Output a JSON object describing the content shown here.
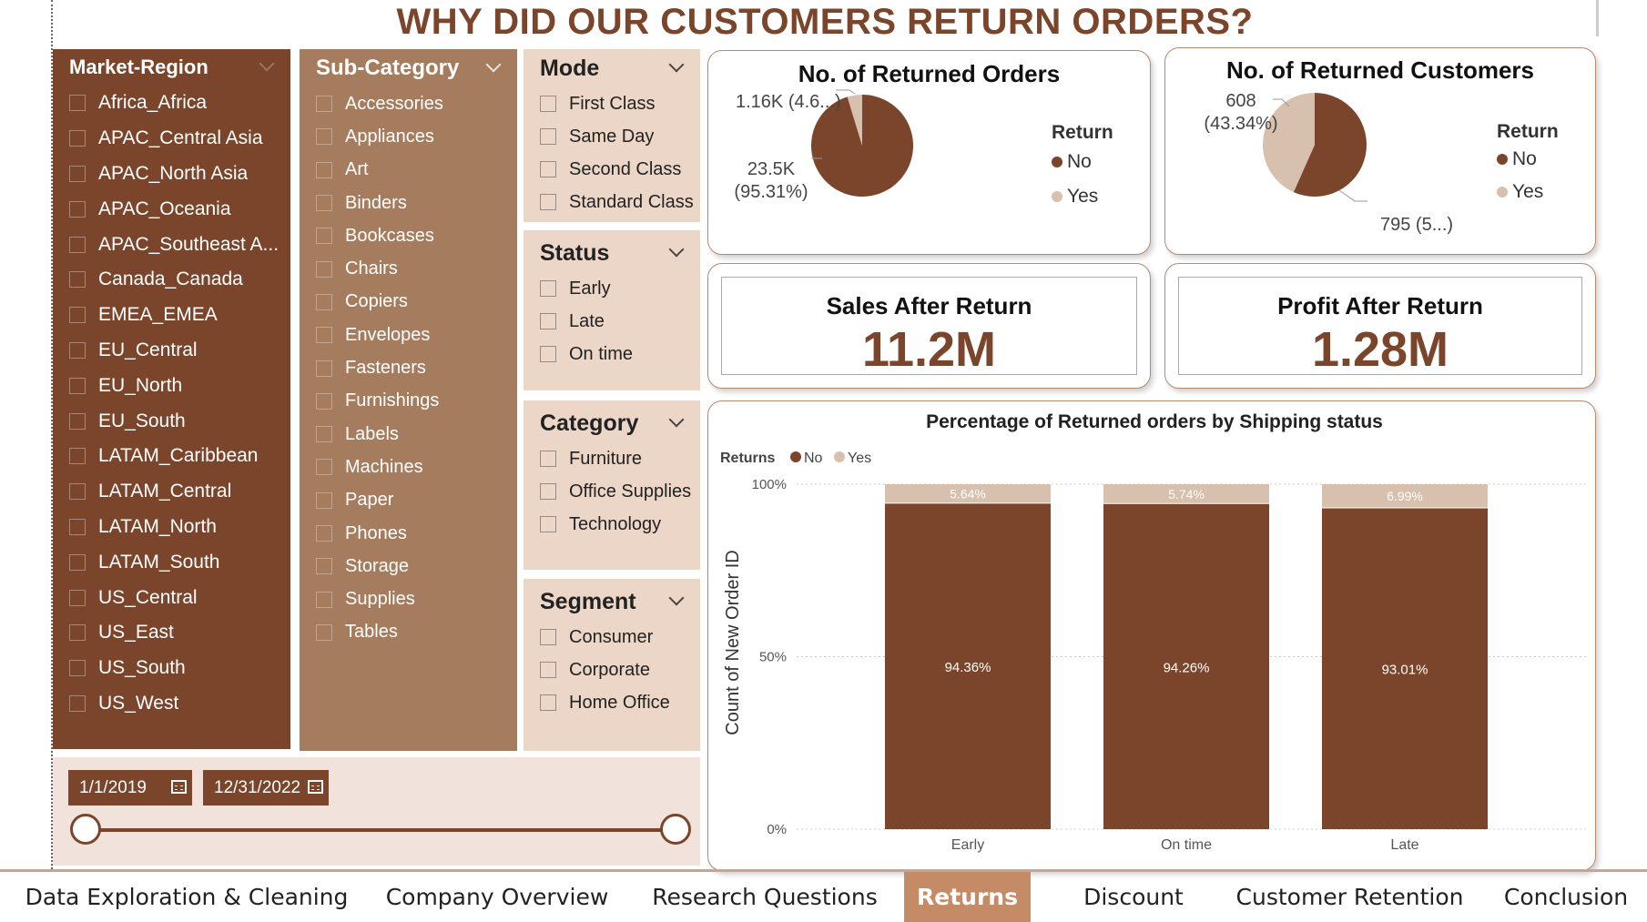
{
  "title": "WHY DID OUR CUSTOMERS RETURN ORDERS?",
  "slicers": {
    "region": {
      "title": "Market-Region",
      "items": [
        "Africa_Africa",
        "APAC_Central Asia",
        "APAC_North Asia",
        "APAC_Oceania",
        "APAC_Southeast A...",
        "Canada_Canada",
        "EMEA_EMEA",
        "EU_Central",
        "EU_North",
        "EU_South",
        "LATAM_Caribbean",
        "LATAM_Central",
        "LATAM_North",
        "LATAM_South",
        "US_Central",
        "US_East",
        "US_South",
        "US_West"
      ]
    },
    "sub_category": {
      "title": "Sub-Category",
      "items": [
        "Accessories",
        "Appliances",
        "Art",
        "Binders",
        "Bookcases",
        "Chairs",
        "Copiers",
        "Envelopes",
        "Fasteners",
        "Furnishings",
        "Labels",
        "Machines",
        "Paper",
        "Phones",
        "Storage",
        "Supplies",
        "Tables"
      ]
    },
    "mode": {
      "title": "Mode",
      "items": [
        "First Class",
        "Same Day",
        "Second Class",
        "Standard Class"
      ]
    },
    "status": {
      "title": "Status",
      "items": [
        "Early",
        "Late",
        "On time"
      ]
    },
    "category": {
      "title": "Category",
      "items": [
        "Furniture",
        "Office Supplies",
        "Technology"
      ]
    },
    "segment": {
      "title": "Segment",
      "items": [
        "Consumer",
        "Corporate",
        "Home Office"
      ]
    }
  },
  "date_range": {
    "start": "1/1/2019",
    "end": "12/31/2022",
    "slider_start_fraction": 0.0,
    "slider_end_fraction": 1.0
  },
  "colors": {
    "brown": "#7a452a",
    "beige": "#d7c0ae",
    "tan": "#a67c5e",
    "light": "#ecd6c8",
    "active_tab": "#c58b67"
  },
  "pie_orders": {
    "title": "No. of Returned Orders",
    "legend_title": "Return",
    "legend": [
      {
        "label": "No",
        "color": "#7a452a"
      },
      {
        "label": "Yes",
        "color": "#d7c0ae"
      }
    ],
    "slices": [
      {
        "name": "No",
        "value": 23500,
        "label_line1": "23.5K",
        "label_line2": "(95.31%)",
        "color": "#7a452a"
      },
      {
        "name": "Yes",
        "value": 1160,
        "label_line1": "1.16K (4.6...)",
        "label_line2": "",
        "color": "#d7c0ae"
      }
    ]
  },
  "pie_customers": {
    "title": "No. of Returned Customers",
    "legend_title": "Return",
    "legend": [
      {
        "label": "No",
        "color": "#7a452a"
      },
      {
        "label": "Yes",
        "color": "#d7c0ae"
      }
    ],
    "slices": [
      {
        "name": "No",
        "value": 795,
        "label_line1": "795 (5...)",
        "label_line2": "",
        "color": "#7a452a"
      },
      {
        "name": "Yes",
        "value": 608,
        "label_line1": "608",
        "label_line2": "(43.34%)",
        "color": "#d7c0ae"
      }
    ]
  },
  "kpis": {
    "sales": {
      "label": "Sales After Return",
      "value": "11.2M"
    },
    "profit": {
      "label": "Profit After Return",
      "value": "1.28M"
    }
  },
  "chart_data": {
    "type": "bar",
    "stacked": "percent",
    "title": "Percentage of Returned orders by Shipping status",
    "legend_title": "Returns",
    "ylabel": "Count of New Order ID",
    "xlabel": "",
    "categories": [
      "Early",
      "On time",
      "Late"
    ],
    "yticks": [
      "0%",
      "50%",
      "100%"
    ],
    "ylim": [
      0,
      100
    ],
    "series": [
      {
        "name": "No",
        "color": "#7a452a",
        "values": [
          94.36,
          94.26,
          93.01
        ],
        "labels": [
          "94.36%",
          "94.26%",
          "93.01%"
        ]
      },
      {
        "name": "Yes",
        "color": "#d7c0ae",
        "values": [
          5.64,
          5.74,
          6.99
        ],
        "labels": [
          "5.64%",
          "5.74%",
          "6.99%"
        ]
      }
    ],
    "grid": true,
    "legend_position": "top-left"
  },
  "tabs": [
    {
      "label": "Data Exploration & Cleaning",
      "active": false
    },
    {
      "label": "Company Overview",
      "active": false
    },
    {
      "label": "Research Questions",
      "active": false
    },
    {
      "label": "Returns",
      "active": true
    },
    {
      "label": "Discount",
      "active": false
    },
    {
      "label": "Customer Retention",
      "active": false
    },
    {
      "label": "Conclusion",
      "active": false
    }
  ]
}
